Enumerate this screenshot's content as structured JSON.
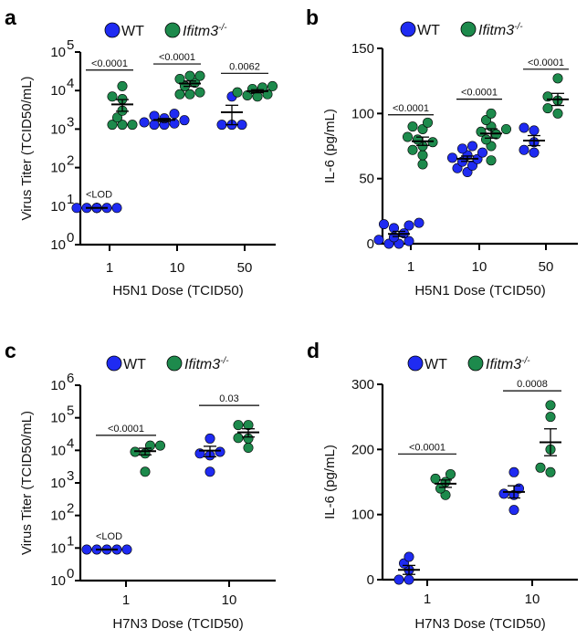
{
  "colors": {
    "WT": "#1f2bf2",
    "KO": "#1d8a4c"
  },
  "legend": {
    "wt_label": "WT",
    "ko_label": "Ifitm3",
    "ko_sup": "-/-"
  },
  "chart_data": [
    {
      "panel": "a",
      "type": "scatter",
      "yscale": "log",
      "ylabel": "Virus Titer (TCID50/mL)",
      "xlabel": "H5N1 Dose (TCID50)",
      "ylim": [
        1,
        100000
      ],
      "ytick_labels": [
        [
          "10",
          "0"
        ],
        [
          "10",
          "1"
        ],
        [
          "10",
          "2"
        ],
        [
          "10",
          "3"
        ],
        [
          "10",
          "4"
        ],
        [
          "10",
          "5"
        ]
      ],
      "categories": [
        "1",
        "10",
        "50"
      ],
      "lod_label": "<LOD",
      "series": [
        {
          "name": "WT",
          "values": [
            [
              9,
              9,
              9,
              9,
              9,
              9,
              9,
              9
            ],
            [
              1300,
              1300,
              1400,
              1500,
              1700,
              1900,
              2200,
              2500
            ],
            [
              1300,
              1300,
              1300,
              7000
            ]
          ]
        },
        {
          "name": "Ifitm3-/-",
          "values": [
            [
              1300,
              1300,
              1300,
              2000,
              3000,
              6000,
              7000,
              13000
            ],
            [
              8000,
              8000,
              9000,
              13000,
              16000,
              20000,
              24000,
              24000
            ],
            [
              7000,
              7500,
              8000,
              9000,
              11000,
              12000,
              13000
            ]
          ]
        }
      ],
      "pvalues": [
        {
          "label": "<0.0001",
          "y": 34000
        },
        {
          "label": "<0.0001",
          "y": 49000
        },
        {
          "label": "0.0062",
          "y": 28000
        }
      ]
    },
    {
      "panel": "b",
      "type": "scatter",
      "yscale": "linear",
      "ylabel": "IL-6 (pg/mL)",
      "xlabel": "H5N1 Dose (TCID50)",
      "ylim": [
        0,
        150
      ],
      "ytick_labels": [
        [
          "0"
        ],
        [
          "50"
        ],
        [
          "100"
        ],
        [
          "150"
        ]
      ],
      "ytick_values": [
        0,
        50,
        100,
        150
      ],
      "categories": [
        "1",
        "10",
        "50"
      ],
      "series": [
        {
          "name": "WT",
          "values": [
            [
              0,
              0,
              2,
              3,
              5,
              8,
              12,
              14,
              15,
              16
            ],
            [
              55,
              58,
              60,
              63,
              65,
              66,
              68,
              70,
              73,
              75
            ],
            [
              70,
              72,
              78,
              87,
              89
            ]
          ]
        },
        {
          "name": "Ifitm3-/-",
          "values": [
            [
              61,
              68,
              72,
              75,
              78,
              80,
              82,
              88,
              90,
              93
            ],
            [
              64,
              75,
              80,
              84,
              86,
              88,
              90,
              95,
              100
            ],
            [
              100,
              104,
              110,
              113,
              127
            ]
          ]
        }
      ],
      "pvalues": [
        {
          "label": "<0.0001",
          "y": 99
        },
        {
          "label": "<0.0001",
          "y": 111
        },
        {
          "label": "<0.0001",
          "y": 134
        }
      ]
    },
    {
      "panel": "c",
      "type": "scatter",
      "yscale": "log",
      "ylabel": "Virus Titer (TCID50/mL)",
      "xlabel": "H7N3 Dose (TCID50)",
      "ylim": [
        1,
        1000000
      ],
      "ytick_labels": [
        [
          "10",
          "0"
        ],
        [
          "10",
          "1"
        ],
        [
          "10",
          "2"
        ],
        [
          "10",
          "3"
        ],
        [
          "10",
          "4"
        ],
        [
          "10",
          "5"
        ],
        [
          "10",
          "6"
        ]
      ],
      "categories": [
        "1",
        "10"
      ],
      "lod_label": "<LOD",
      "series": [
        {
          "name": "WT",
          "values": [
            [
              9,
              9,
              9,
              9,
              9
            ],
            [
              2200,
              7000,
              8000,
              9000,
              23000
            ]
          ]
        },
        {
          "name": "Ifitm3-/-",
          "values": [
            [
              2200,
              8000,
              9000,
              14000,
              14000
            ],
            [
              12000,
              23000,
              24000,
              60000,
              60000
            ]
          ]
        }
      ],
      "pvalues": [
        {
          "label": "<0.0001",
          "y": 29000
        },
        {
          "label": "0.03",
          "y": 240000
        }
      ]
    },
    {
      "panel": "d",
      "type": "scatter",
      "yscale": "linear",
      "ylabel": "IL-6 (pg/mL)",
      "xlabel": "H7N3 Dose (TCID50)",
      "ylim": [
        0,
        300
      ],
      "ytick_labels": [
        [
          "0"
        ],
        [
          "100"
        ],
        [
          "200"
        ],
        [
          "300"
        ]
      ],
      "ytick_values": [
        0,
        100,
        200,
        300
      ],
      "categories": [
        "1",
        "10"
      ],
      "series": [
        {
          "name": "WT",
          "values": [
            [
              0,
              0,
              15,
              25,
              35
            ],
            [
              107,
              130,
              132,
              140,
              165
            ]
          ]
        },
        {
          "name": "Ifitm3-/-",
          "values": [
            [
              130,
              140,
              150,
              155,
              162
            ],
            [
              165,
              172,
              200,
              250,
              268
            ]
          ]
        }
      ],
      "pvalues": [
        {
          "label": "<0.0001",
          "y": 193
        },
        {
          "label": "0.0008",
          "y": 290
        }
      ]
    }
  ]
}
